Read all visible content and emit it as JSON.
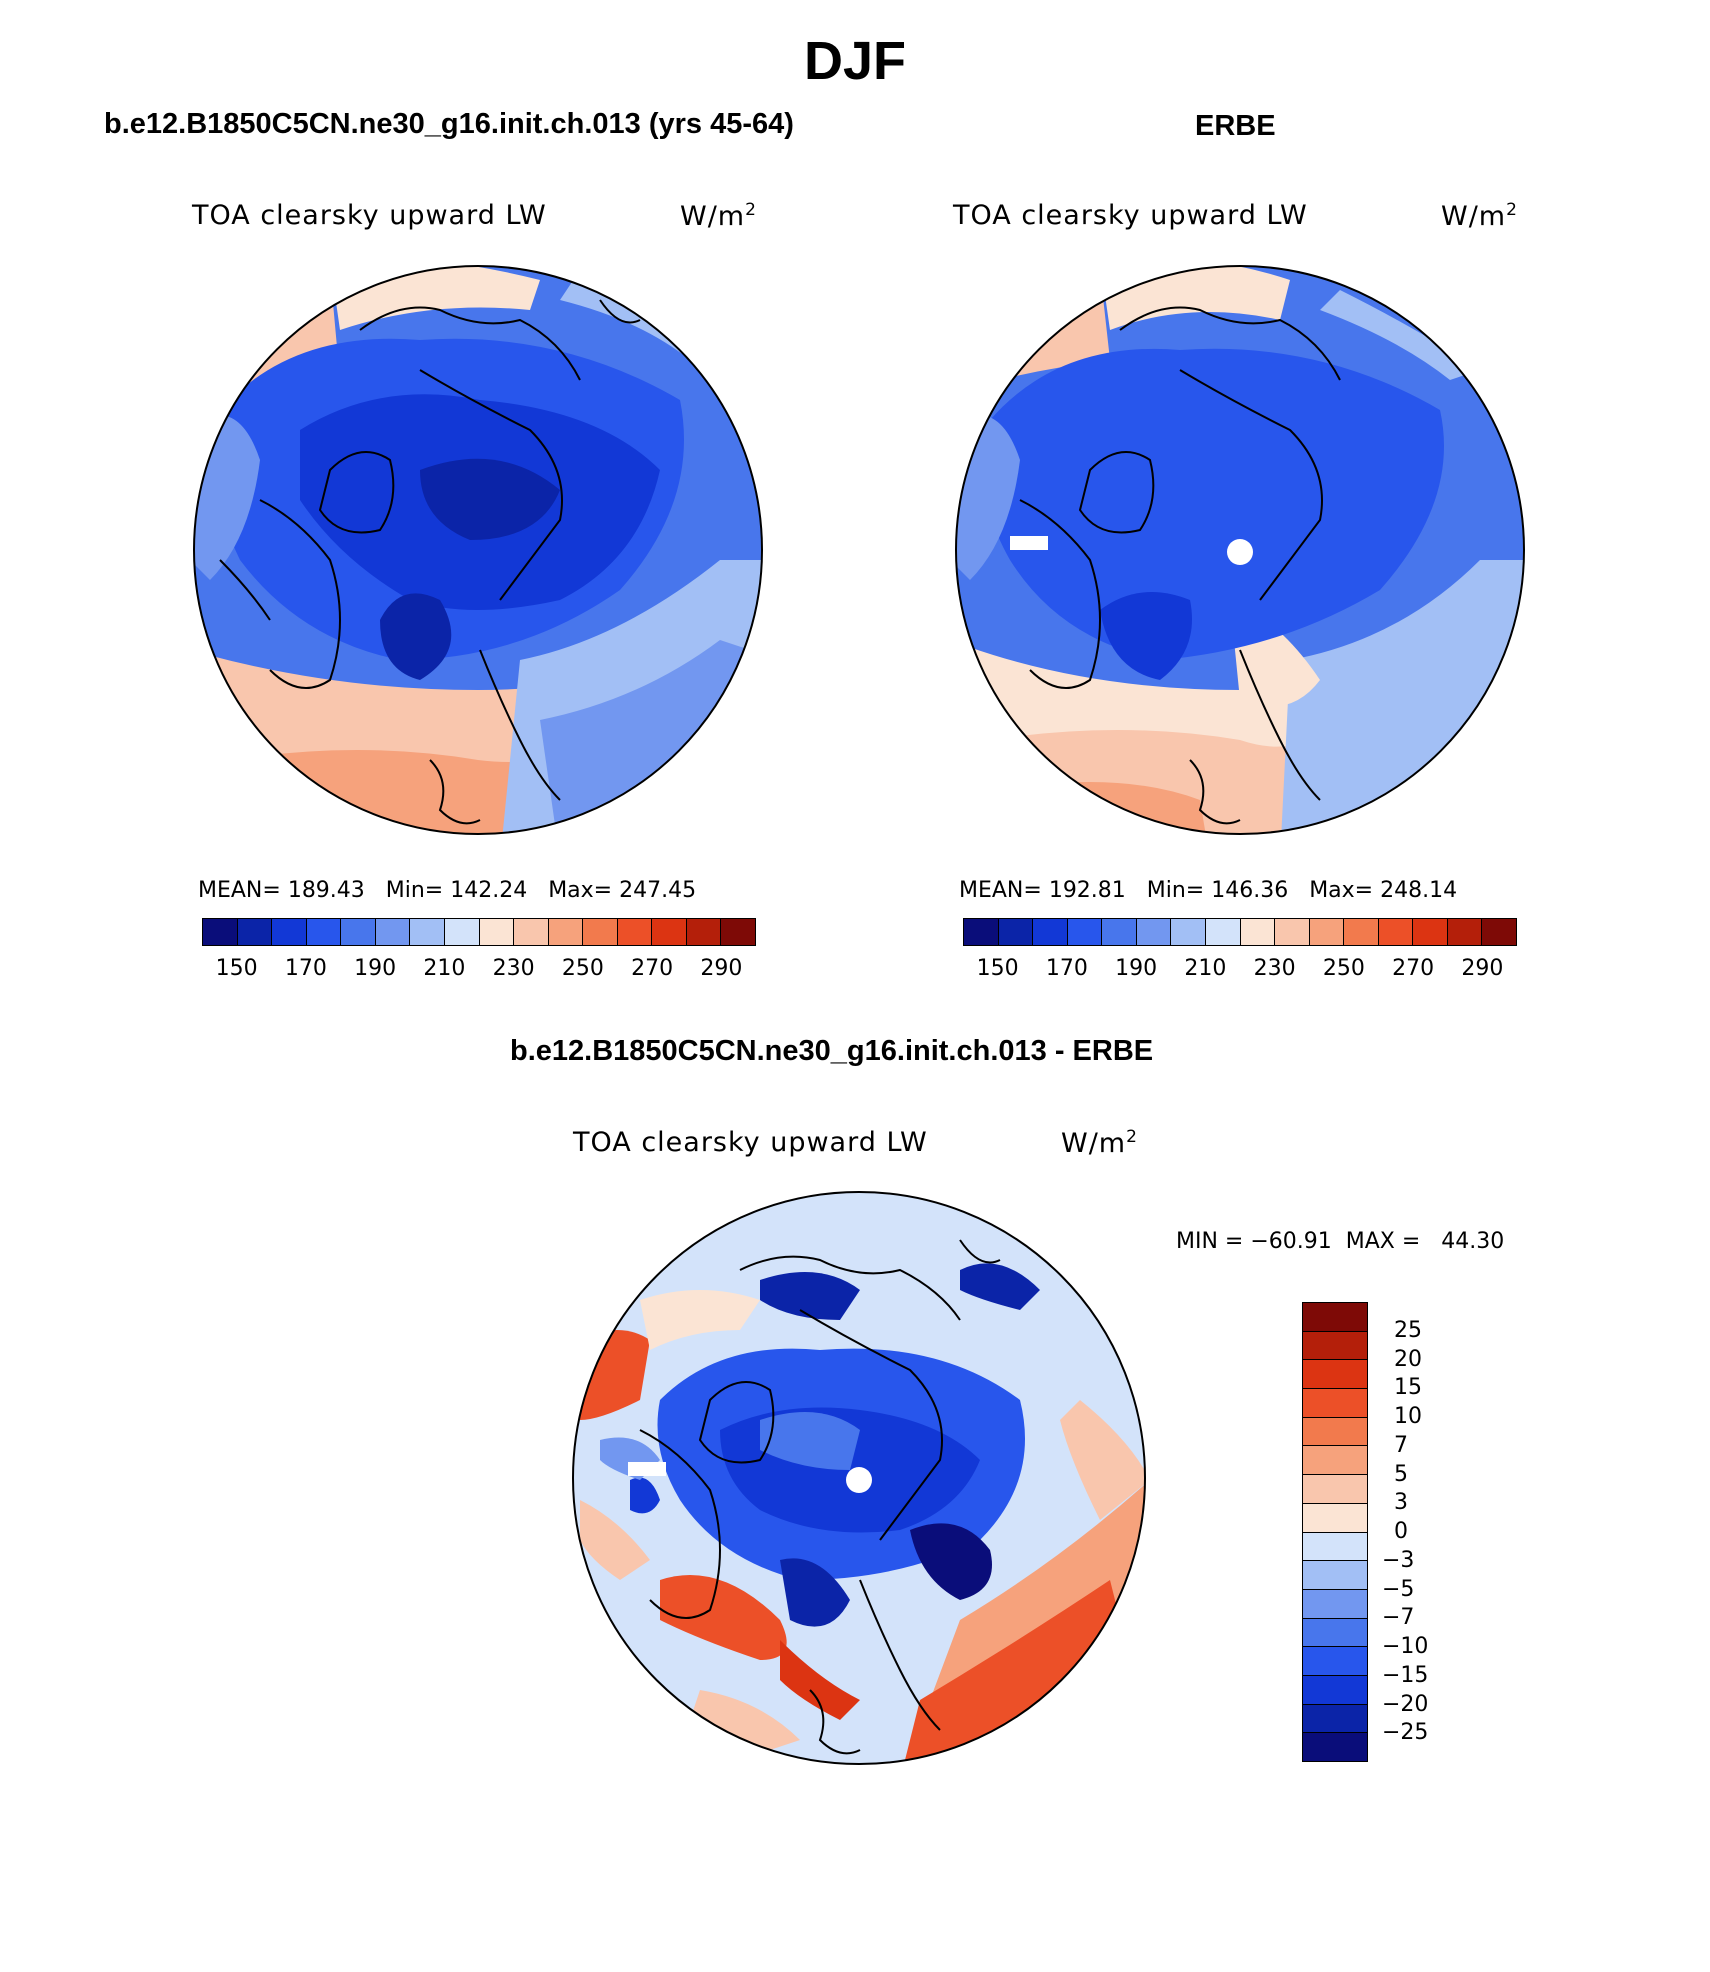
{
  "page": {
    "season": "DJF",
    "panel_titles": {
      "model": "b.e12.B1850C5CN.ne30_g16.init.ch.013 (yrs 45-64)",
      "obs": "ERBE",
      "diff": "b.e12.B1850C5CN.ne30_g16.init.ch.013 - ERBE"
    }
  },
  "panels": {
    "model": {
      "variable": "TOA clearsky upward LW",
      "units_base": "W/m",
      "units_exp": "2",
      "stats": "MEAN= 189.43   Min= 142.24   Max= 247.45"
    },
    "obs": {
      "variable": "TOA clearsky upward LW",
      "units_base": "W/m",
      "units_exp": "2",
      "stats": "MEAN= 192.81   Min= 146.36   Max= 248.14"
    },
    "diff": {
      "variable": "TOA clearsky upward LW",
      "units_base": "W/m",
      "units_exp": "2",
      "stats": "MIN = −60.91  MAX =   44.30"
    }
  },
  "colorbars": {
    "main": {
      "colors": [
        "#0a0d7a",
        "#0b24a8",
        "#1238d6",
        "#2856ec",
        "#4876ec",
        "#7297f0",
        "#a2bff5",
        "#d3e3fa",
        "#fbe4d4",
        "#f9c6ad",
        "#f6a27c",
        "#f27a4d",
        "#ec5028",
        "#dc3412",
        "#b41f0a",
        "#7e0a06"
      ],
      "tick_labels": [
        "150",
        "170",
        "190",
        "210",
        "230",
        "250",
        "270",
        "290"
      ]
    },
    "diff": {
      "colors": [
        "#7e0a06",
        "#b41f0a",
        "#dc3412",
        "#ec5028",
        "#f27a4d",
        "#f6a27c",
        "#f9c6ad",
        "#fbe4d4",
        "#d3e3fa",
        "#a2bff5",
        "#7297f0",
        "#4876ec",
        "#2856ec",
        "#1238d6",
        "#0b24a8",
        "#0a0d7a"
      ],
      "tick_labels": [
        "25",
        "20",
        "15",
        "10",
        "7",
        "5",
        "3",
        "0",
        "−3",
        "−5",
        "−7",
        "−10",
        "−15",
        "−20",
        "−25"
      ]
    }
  },
  "colors": {
    "deep_blue": "#0b24a8",
    "mid_blue": "#2856ec",
    "light_blue": "#a2bff5",
    "pale_peach": "#fbe4d4",
    "salmon": "#f6a27c",
    "red_orange": "#ec5028",
    "coast": "#000000",
    "missing": "#ffffff"
  }
}
